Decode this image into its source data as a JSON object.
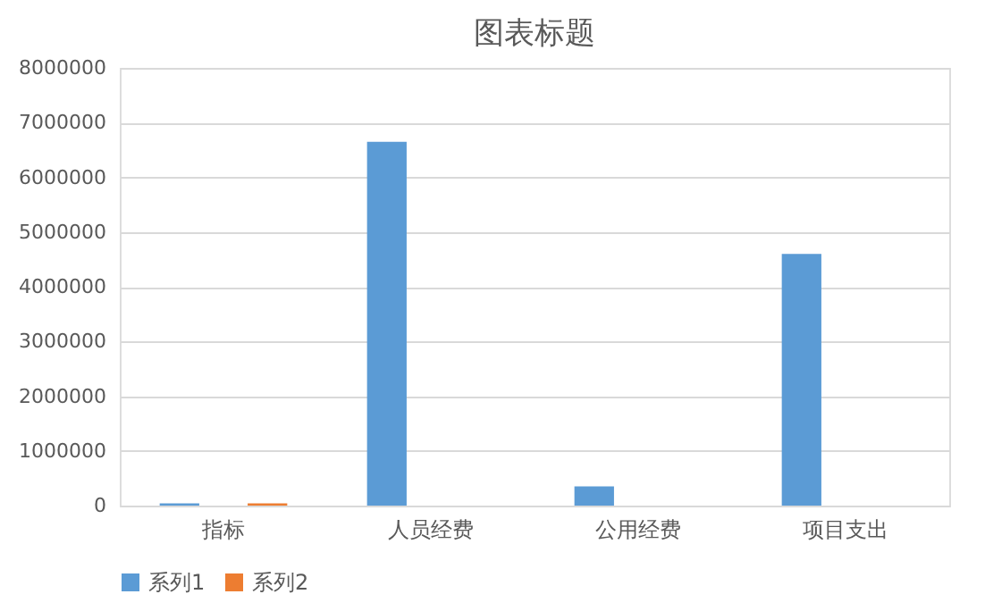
{
  "chart_data": {
    "type": "bar",
    "title": "图表标题",
    "categories": [
      "指标",
      "人员经费",
      "公用经费",
      "项目支出"
    ],
    "series": [
      {
        "name": "系列1",
        "color": "#5b9bd5",
        "values": [
          40000,
          6650000,
          350000,
          4600000
        ]
      },
      {
        "name": "系列2",
        "color": "#ed7d31",
        "values": [
          40000,
          null,
          null,
          null
        ]
      }
    ],
    "ylim": [
      0,
      8000000
    ],
    "yticks": [
      0,
      1000000,
      2000000,
      3000000,
      4000000,
      5000000,
      6000000,
      7000000,
      8000000
    ],
    "grid": "y",
    "legend": "bottom"
  }
}
